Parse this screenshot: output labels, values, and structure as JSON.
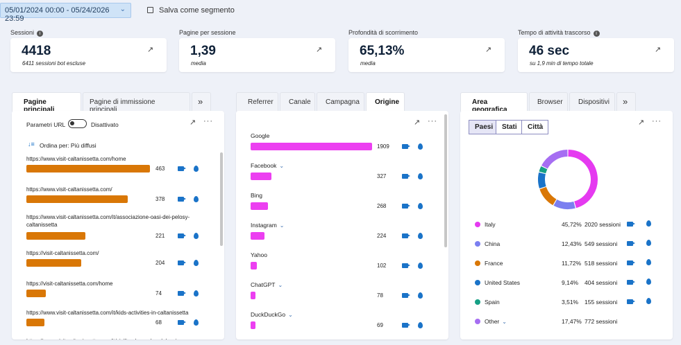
{
  "toolbar": {
    "date_range": "05/01/2024 00:00 - 05/24/2026 23:59",
    "save_segment": "Salva come segmento"
  },
  "kpis": [
    {
      "label": "Sessioni",
      "value": "4418",
      "sub": "6411 sessioni bot escluse"
    },
    {
      "label": "Pagine per sessione",
      "value": "1,39",
      "sub": "media"
    },
    {
      "label": "Profondità di scorrimento",
      "value": "65,13%",
      "sub": "media"
    },
    {
      "label": "Tempo di attività trascorso",
      "value": "46 sec",
      "sub": "su 1,9 min di tempo totale"
    }
  ],
  "pages_panel": {
    "tabs": [
      "Pagine principali",
      "Pagine di immissione principali"
    ],
    "url_params_label": "Parametri URL",
    "url_params_state": "Disattivato",
    "sort_label": "Ordina per: Più diffusi",
    "rows": [
      {
        "url": "https://www.visit-caltanissetta.com/home",
        "count": "463",
        "fraction": 0.463
      },
      {
        "url": "https://www.visit-caltanissetta.com/",
        "count": "378",
        "fraction": 0.378
      },
      {
        "url": "https://www.visit-caltanissetta.com/it/associazione-oasi-dei-pelosy-caltanissetta",
        "count": "221",
        "fraction": 0.221
      },
      {
        "url": "https://visit-caltanissetta.com/",
        "count": "204",
        "fraction": 0.204
      },
      {
        "url": "https://visit-caltanissetta.com/home",
        "count": "74",
        "fraction": 0.074
      },
      {
        "url": "https://www.visit-caltanissetta.com/it/kids-activities-in-caltanissetta",
        "count": "68",
        "fraction": 0.068
      },
      {
        "url": "https://www.visit-caltanissetta.com/it/sicilian-legends-adolescie",
        "count": "",
        "fraction": 0
      }
    ]
  },
  "referrer_panel": {
    "tabs": [
      "Referrer",
      "Canale",
      "Campagna",
      "Origine"
    ],
    "rows": [
      {
        "name": "Google",
        "count": "1909",
        "fraction": 1.0
      },
      {
        "name": "Facebook",
        "count": "327",
        "fraction": 0.171,
        "expand": true
      },
      {
        "name": "Bing",
        "count": "268",
        "fraction": 0.14
      },
      {
        "name": "Instagram",
        "count": "224",
        "fraction": 0.117,
        "expand": true
      },
      {
        "name": "Yahoo",
        "count": "102",
        "fraction": 0.053
      },
      {
        "name": "ChatGPT",
        "count": "78",
        "fraction": 0.041,
        "expand": true
      },
      {
        "name": "DuckDuckGo",
        "count": "69",
        "fraction": 0.036,
        "expand": true
      }
    ]
  },
  "geo_panel": {
    "tabs": [
      "Area geografica",
      "Browser",
      "Dispositivi"
    ],
    "segments": [
      "Paesi",
      "Stati",
      "Città"
    ],
    "rows": [
      {
        "name": "Italy",
        "pct": "45,72%",
        "sessions": "2020 sessioni",
        "color": "#e53af0",
        "share": 45.72
      },
      {
        "name": "China",
        "pct": "12,43%",
        "sessions": "549 sessioni",
        "color": "#7b7ff0",
        "share": 12.43
      },
      {
        "name": "France",
        "pct": "11,72%",
        "sessions": "518 sessioni",
        "color": "#d97706",
        "share": 11.72
      },
      {
        "name": "United States",
        "pct": "9,14%",
        "sessions": "404 sessioni",
        "color": "#1a73c8",
        "share": 9.14
      },
      {
        "name": "Spain",
        "pct": "3,51%",
        "sessions": "155 sessioni",
        "color": "#16a085",
        "share": 3.51
      },
      {
        "name": "Other",
        "pct": "17,47%",
        "sessions": "772 sessioni",
        "color": "#a66ef2",
        "share": 17.47,
        "expand": true
      }
    ]
  }
}
